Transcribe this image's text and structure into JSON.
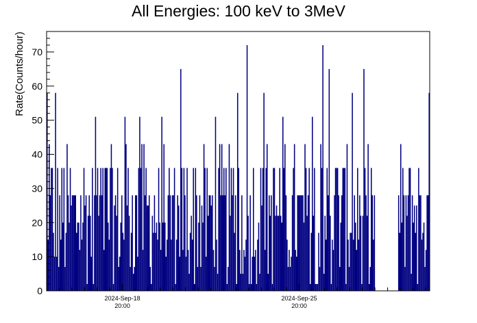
{
  "chart_data": {
    "type": "bar",
    "title": "All Energies:  100 keV to 3MeV",
    "ylabel": "Rate(Counts/hour)",
    "xlabel": "",
    "ylim": [
      0,
      76
    ],
    "yticks": [
      0,
      10,
      20,
      30,
      40,
      50,
      60,
      70
    ],
    "x_range": [
      "2024-Sep-15 20:00",
      "2024-Oct-01 00:00"
    ],
    "xticks": [
      {
        "date": "2024-Sep-18",
        "time": "20:00"
      },
      {
        "date": "2024-Sep-25",
        "time": "20:00"
      }
    ],
    "gap": [
      "2024-Sep-28 20:00",
      "2024-Sep-29 18:00"
    ],
    "grid": false,
    "color": "#000080",
    "series": [
      {
        "values_description": "hourly count rate, binned; typical level 5-36 counts/hour",
        "peaks": [
          {
            "x": "2024-Sep-15 20:00",
            "y": 58
          },
          {
            "x": "2024-Sep-16 04:00",
            "y": 58
          },
          {
            "x": "2024-Sep-17 18:00",
            "y": 51
          },
          {
            "x": "2024-Sep-18 22:00",
            "y": 51
          },
          {
            "x": "2024-Sep-19 12:00",
            "y": 51
          },
          {
            "x": "2024-Sep-20 09:00",
            "y": 51
          },
          {
            "x": "2024-Sep-21 03:00",
            "y": 65
          },
          {
            "x": "2024-Sep-22 12:00",
            "y": 51
          },
          {
            "x": "2024-Sep-23 09:00",
            "y": 58
          },
          {
            "x": "2024-Sep-23 18:00",
            "y": 72
          },
          {
            "x": "2024-Sep-24 10:00",
            "y": 58
          },
          {
            "x": "2024-Sep-25 04:00",
            "y": 51
          },
          {
            "x": "2024-Sep-26 08:00",
            "y": 51
          },
          {
            "x": "2024-Sep-26 18:00",
            "y": 72
          },
          {
            "x": "2024-Sep-27 00:00",
            "y": 65
          },
          {
            "x": "2024-Sep-27 22:00",
            "y": 58
          },
          {
            "x": "2024-Sep-28 09:00",
            "y": 65
          },
          {
            "x": "2024-Sep-30 23:00",
            "y": 58
          }
        ]
      }
    ]
  }
}
